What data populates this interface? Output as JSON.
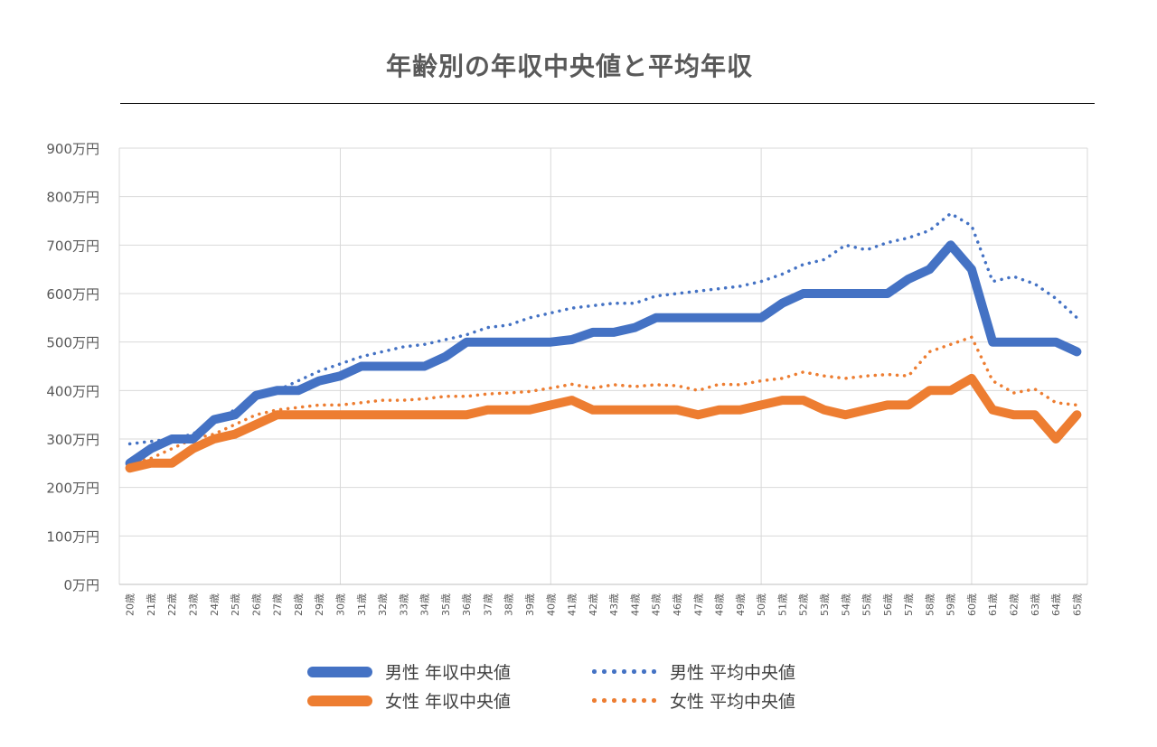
{
  "chart_data": {
    "type": "line",
    "title": "年齢別の年収中央値と平均年収",
    "xlabel": "",
    "ylabel": "",
    "ylim": [
      0,
      900
    ],
    "yticks": [
      "0万円",
      "100万円",
      "200万円",
      "300万円",
      "400万円",
      "500万円",
      "600万円",
      "700万円",
      "800万円",
      "900万円"
    ],
    "categories": [
      "20歳",
      "21歳",
      "22歳",
      "23歳",
      "24歳",
      "25歳",
      "26歳",
      "27歳",
      "28歳",
      "29歳",
      "30歳",
      "31歳",
      "32歳",
      "33歳",
      "34歳",
      "35歳",
      "36歳",
      "37歳",
      "38歳",
      "39歳",
      "40歳",
      "41歳",
      "42歳",
      "43歳",
      "44歳",
      "45歳",
      "46歳",
      "47歳",
      "48歳",
      "49歳",
      "50歳",
      "51歳",
      "52歳",
      "53歳",
      "54歳",
      "55歳",
      "56歳",
      "57歳",
      "58歳",
      "59歳",
      "60歳",
      "61歳",
      "62歳",
      "63歳",
      "64歳",
      "65歳"
    ],
    "series": [
      {
        "name": "男性 年収中央値",
        "style": "solid",
        "color": "#4472C4",
        "values": [
          250,
          280,
          300,
          300,
          340,
          350,
          390,
          400,
          400,
          420,
          430,
          450,
          450,
          450,
          450,
          470,
          500,
          500,
          500,
          500,
          500,
          505,
          520,
          520,
          530,
          550,
          550,
          550,
          550,
          550,
          550,
          580,
          600,
          600,
          600,
          600,
          600,
          630,
          650,
          700,
          650,
          500,
          500,
          500,
          500,
          480
        ]
      },
      {
        "name": "男性 平均中央値",
        "style": "dotted",
        "color": "#4472C4",
        "values": [
          290,
          295,
          300,
          310,
          340,
          360,
          385,
          400,
          420,
          440,
          455,
          470,
          480,
          490,
          495,
          505,
          515,
          530,
          535,
          550,
          560,
          570,
          575,
          580,
          580,
          595,
          600,
          605,
          610,
          615,
          625,
          640,
          660,
          670,
          700,
          690,
          705,
          715,
          730,
          765,
          740,
          625,
          635,
          620,
          590,
          550
        ]
      },
      {
        "name": "女性 年収中央値",
        "style": "solid",
        "color": "#ED7D31",
        "values": [
          240,
          250,
          250,
          280,
          300,
          310,
          330,
          350,
          350,
          350,
          350,
          350,
          350,
          350,
          350,
          350,
          350,
          360,
          360,
          360,
          370,
          380,
          360,
          360,
          360,
          360,
          360,
          350,
          360,
          360,
          370,
          380,
          380,
          360,
          350,
          360,
          370,
          370,
          400,
          400,
          425,
          360,
          350,
          350,
          300,
          350
        ]
      },
      {
        "name": "女性 平均中央値",
        "style": "dotted",
        "color": "#ED7D31",
        "values": [
          250,
          260,
          280,
          300,
          310,
          330,
          350,
          360,
          365,
          370,
          370,
          375,
          380,
          380,
          383,
          388,
          388,
          393,
          395,
          398,
          405,
          413,
          405,
          412,
          408,
          412,
          410,
          400,
          413,
          412,
          420,
          425,
          438,
          430,
          425,
          430,
          433,
          430,
          480,
          495,
          510,
          420,
          395,
          403,
          375,
          370
        ]
      }
    ],
    "grid": true,
    "legend_position": "bottom"
  }
}
